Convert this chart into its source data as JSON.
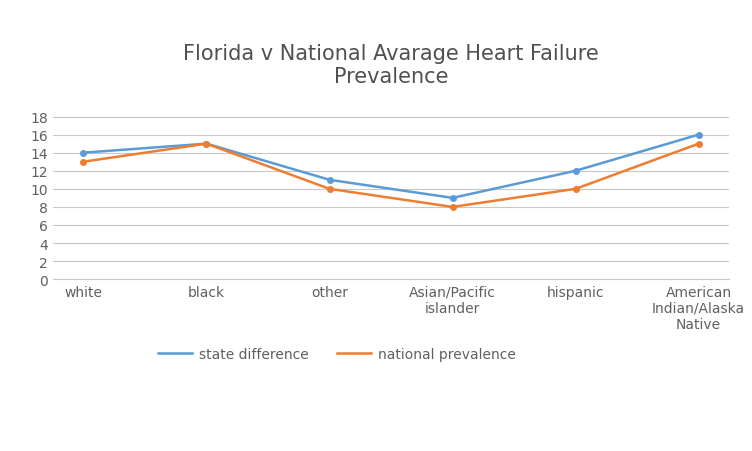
{
  "title": "Florida v National Avarage Heart Failure\nPrevalence",
  "categories": [
    "white",
    "black",
    "other",
    "Asian/Pacific\nislander",
    "hispanic",
    "American\nIndian/Alaska\nNative"
  ],
  "state_difference": [
    14,
    15,
    11,
    9,
    12,
    16
  ],
  "national_prevalence": [
    13,
    15,
    10,
    8,
    10,
    15
  ],
  "state_color": "#5b9bd5",
  "national_color": "#ed7d31",
  "state_label": "state difference",
  "national_label": "national prevalence",
  "ylim": [
    0,
    20
  ],
  "yticks": [
    0,
    2,
    4,
    6,
    8,
    10,
    12,
    14,
    16,
    18
  ],
  "title_fontsize": 15,
  "tick_fontsize": 10,
  "background_color": "#ffffff",
  "grid_color": "#c8c8c8",
  "line_width": 1.8
}
